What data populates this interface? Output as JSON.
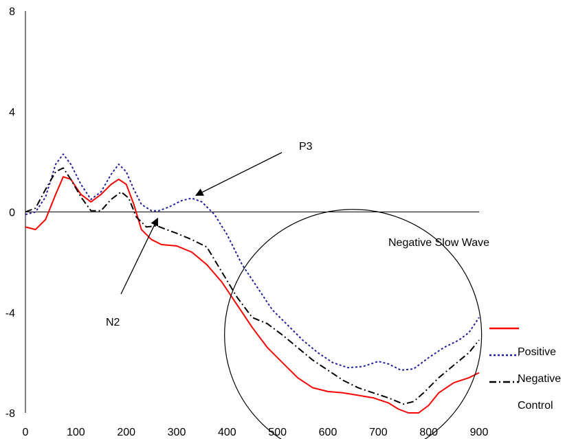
{
  "chart_data": {
    "type": "line",
    "title": "",
    "xlabel": "",
    "ylabel": "",
    "xlim": [
      0,
      900
    ],
    "ylim": [
      -8,
      8
    ],
    "x_ticks": [
      "0",
      "100",
      "200",
      "300",
      "400",
      "500",
      "600",
      "700",
      "800",
      "900"
    ],
    "y_ticks": [
      "8",
      "4",
      "0",
      "-4",
      "-8"
    ],
    "grid": false,
    "legend_position": "right",
    "series": [
      {
        "name": "Positive",
        "color": "#ff0000",
        "style": "solid",
        "points": [
          [
            0,
            -0.6
          ],
          [
            20,
            -0.7
          ],
          [
            40,
            -0.3
          ],
          [
            60,
            0.7
          ],
          [
            75,
            1.4
          ],
          [
            90,
            1.3
          ],
          [
            110,
            0.7
          ],
          [
            130,
            0.4
          ],
          [
            150,
            0.7
          ],
          [
            170,
            1.1
          ],
          [
            185,
            1.3
          ],
          [
            200,
            1.1
          ],
          [
            215,
            0.3
          ],
          [
            230,
            -0.7
          ],
          [
            250,
            -1.1
          ],
          [
            270,
            -1.3
          ],
          [
            300,
            -1.35
          ],
          [
            330,
            -1.6
          ],
          [
            360,
            -2.1
          ],
          [
            390,
            -2.8
          ],
          [
            420,
            -3.7
          ],
          [
            450,
            -4.6
          ],
          [
            480,
            -5.4
          ],
          [
            510,
            -6.0
          ],
          [
            540,
            -6.6
          ],
          [
            570,
            -7.0
          ],
          [
            600,
            -7.15
          ],
          [
            630,
            -7.2
          ],
          [
            660,
            -7.3
          ],
          [
            690,
            -7.4
          ],
          [
            720,
            -7.6
          ],
          [
            740,
            -7.85
          ],
          [
            760,
            -8.0
          ],
          [
            780,
            -8.0
          ],
          [
            800,
            -7.7
          ],
          [
            820,
            -7.2
          ],
          [
            850,
            -6.8
          ],
          [
            880,
            -6.6
          ],
          [
            900,
            -6.4
          ]
        ]
      },
      {
        "name": "Negative",
        "color": "#1f1fa0",
        "style": "dotted",
        "points": [
          [
            0,
            -0.1
          ],
          [
            20,
            0.0
          ],
          [
            40,
            0.6
          ],
          [
            60,
            1.9
          ],
          [
            75,
            2.3
          ],
          [
            90,
            1.9
          ],
          [
            110,
            1.1
          ],
          [
            130,
            0.5
          ],
          [
            150,
            0.8
          ],
          [
            170,
            1.5
          ],
          [
            185,
            1.9
          ],
          [
            200,
            1.6
          ],
          [
            215,
            0.9
          ],
          [
            230,
            0.3
          ],
          [
            250,
            0.05
          ],
          [
            265,
            0.05
          ],
          [
            285,
            0.2
          ],
          [
            310,
            0.45
          ],
          [
            330,
            0.55
          ],
          [
            350,
            0.4
          ],
          [
            375,
            -0.1
          ],
          [
            400,
            -0.9
          ],
          [
            430,
            -2.1
          ],
          [
            460,
            -3.0
          ],
          [
            490,
            -3.9
          ],
          [
            520,
            -4.5
          ],
          [
            550,
            -5.1
          ],
          [
            580,
            -5.6
          ],
          [
            610,
            -6.0
          ],
          [
            640,
            -6.2
          ],
          [
            670,
            -6.15
          ],
          [
            700,
            -5.95
          ],
          [
            720,
            -6.05
          ],
          [
            745,
            -6.3
          ],
          [
            770,
            -6.25
          ],
          [
            800,
            -5.8
          ],
          [
            830,
            -5.4
          ],
          [
            860,
            -5.1
          ],
          [
            880,
            -4.8
          ],
          [
            900,
            -4.2
          ]
        ]
      },
      {
        "name": "Control",
        "color": "#000000",
        "style": "dashdot",
        "points": [
          [
            0,
            0.0
          ],
          [
            20,
            0.15
          ],
          [
            40,
            0.9
          ],
          [
            60,
            1.6
          ],
          [
            75,
            1.75
          ],
          [
            90,
            1.3
          ],
          [
            110,
            0.6
          ],
          [
            130,
            0.05
          ],
          [
            150,
            0.05
          ],
          [
            170,
            0.5
          ],
          [
            190,
            0.8
          ],
          [
            205,
            0.55
          ],
          [
            220,
            -0.2
          ],
          [
            240,
            -0.6
          ],
          [
            260,
            -0.55
          ],
          [
            280,
            -0.7
          ],
          [
            300,
            -0.85
          ],
          [
            330,
            -1.1
          ],
          [
            360,
            -1.4
          ],
          [
            390,
            -2.4
          ],
          [
            420,
            -3.4
          ],
          [
            450,
            -4.2
          ],
          [
            480,
            -4.45
          ],
          [
            510,
            -4.9
          ],
          [
            540,
            -5.4
          ],
          [
            570,
            -5.9
          ],
          [
            600,
            -6.3
          ],
          [
            630,
            -6.7
          ],
          [
            660,
            -7.0
          ],
          [
            690,
            -7.2
          ],
          [
            720,
            -7.4
          ],
          [
            750,
            -7.65
          ],
          [
            770,
            -7.55
          ],
          [
            790,
            -7.2
          ],
          [
            820,
            -6.6
          ],
          [
            850,
            -6.1
          ],
          [
            880,
            -5.6
          ],
          [
            900,
            -5.1
          ]
        ]
      }
    ],
    "annotations": {
      "p3": {
        "label": "P3",
        "x": 330,
        "y": 0.55
      },
      "n2": {
        "label": "N2",
        "x": 265,
        "y": -0.2
      },
      "slow_wave": {
        "label": "Negative Slow Wave",
        "cx": 650,
        "cy": -4.9,
        "rx": 255,
        "ry": 5.0
      }
    }
  }
}
